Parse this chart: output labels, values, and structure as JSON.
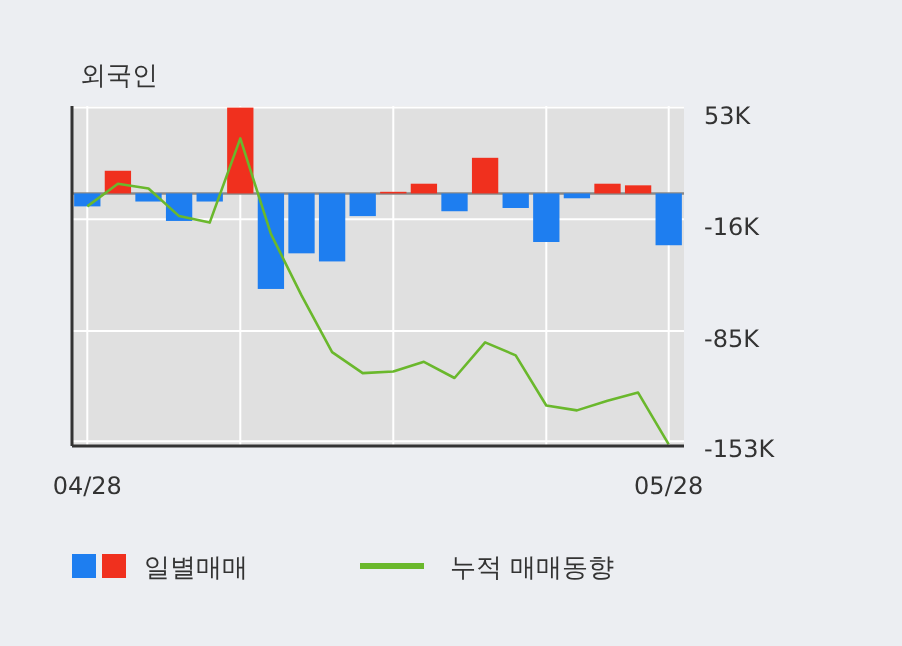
{
  "chart_data": {
    "type": "bar",
    "title": "외국인",
    "categories": [
      "04/28",
      null,
      null,
      null,
      null,
      null,
      null,
      null,
      null,
      null,
      null,
      null,
      null,
      null,
      null,
      null,
      null,
      null,
      null,
      "05/28"
    ],
    "series": [
      {
        "name": "일별매매",
        "colors": [
          "#1e7ef0",
          "#f0301e",
          "#1e7ef0",
          "#1e7ef0",
          "#1e7ef0",
          "#f0301e",
          "#1e7ef0",
          "#1e7ef0",
          "#1e7ef0",
          "#1e7ef0",
          "#f0301e",
          "#f0301e",
          "#1e7ef0",
          "#f0301e",
          "#1e7ef0",
          "#1e7ef0",
          "#1e7ef0",
          "#f0301e",
          "#f0301e",
          "#1e7ef0"
        ],
        "values": [
          -8,
          14,
          -5,
          -17,
          -5,
          53,
          -59,
          -37,
          -42,
          -14,
          1,
          6,
          -11,
          22,
          -9,
          -30,
          -3,
          6,
          5,
          -32
        ]
      },
      {
        "name": "누적 매매동향",
        "type": "line",
        "color": "#6ab82c",
        "values": [
          -8,
          6,
          3,
          -14,
          -18,
          34,
          -25,
          -63,
          -98,
          -111,
          -110,
          -104,
          -114,
          -92,
          -100,
          -131,
          -134,
          -128,
          -123,
          -155
        ]
      }
    ],
    "ylim": [
      -156,
      54
    ],
    "yticks": [
      {
        "value": 53,
        "label": "53K"
      },
      {
        "value": -16,
        "label": "-16K"
      },
      {
        "value": -85,
        "label": "-85K"
      },
      {
        "value": -153,
        "label": "-153K"
      }
    ],
    "grid": true,
    "legend": "bottom",
    "marker": "none"
  }
}
